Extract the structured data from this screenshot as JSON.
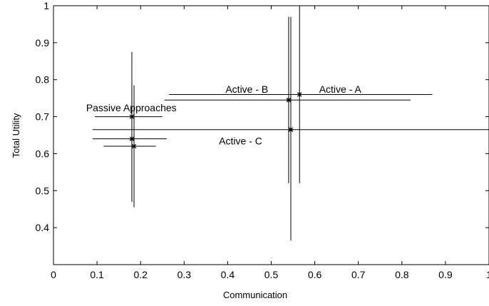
{
  "chart_data": {
    "type": "scatter",
    "title": "",
    "xlabel": "Communication",
    "ylabel": "Total Utility",
    "xlim": [
      0,
      1
    ],
    "ylim": [
      0.3,
      1
    ],
    "x_ticks": [
      0,
      0.1,
      0.2,
      0.3,
      0.4,
      0.5,
      0.6,
      0.7,
      0.8,
      0.9,
      1
    ],
    "x_tick_labels": [
      "0",
      "0.1",
      "0.2",
      "0.3",
      "0.4",
      "0.5",
      "0.6",
      "0.7",
      "0.8",
      "0.9",
      "1"
    ],
    "y_ticks": [
      0.4,
      0.5,
      0.6,
      0.7,
      0.8,
      0.9,
      1
    ],
    "y_tick_labels": [
      "0.4",
      "0.5",
      "0.6",
      "0.7",
      "0.8",
      "0.9",
      "1"
    ],
    "grid": false,
    "marker": "asterisk",
    "points": [
      {
        "x": 0.565,
        "y": 0.76,
        "xerr": [
          0.265,
          0.87
        ],
        "yerr": [
          0.52,
          1.0
        ]
      },
      {
        "x": 0.54,
        "y": 0.745,
        "xerr": [
          0.255,
          0.82
        ],
        "yerr": [
          0.52,
          0.97
        ]
      },
      {
        "x": 0.545,
        "y": 0.665,
        "xerr": [
          0.09,
          1.0
        ],
        "yerr": [
          0.365,
          0.97
        ]
      },
      {
        "x": 0.18,
        "y": 0.7,
        "xerr": [
          0.095,
          0.25
        ],
        "yerr": [
          0.47,
          0.875
        ]
      },
      {
        "x": 0.18,
        "y": 0.64,
        "xerr": [
          0.09,
          0.26
        ],
        "yerr": [
          0.47,
          0.785
        ]
      },
      {
        "x": 0.185,
        "y": 0.62,
        "xerr": [
          0.115,
          0.235
        ],
        "yerr": [
          0.455,
          0.785
        ]
      }
    ],
    "annotations": [
      {
        "text": "Active - A",
        "x": 0.61,
        "y": 0.765
      },
      {
        "text": "Active - B",
        "x": 0.395,
        "y": 0.765
      },
      {
        "text": "Active - C",
        "x": 0.38,
        "y": 0.625
      },
      {
        "text": "Passive Approaches",
        "x": 0.075,
        "y": 0.715
      }
    ]
  }
}
